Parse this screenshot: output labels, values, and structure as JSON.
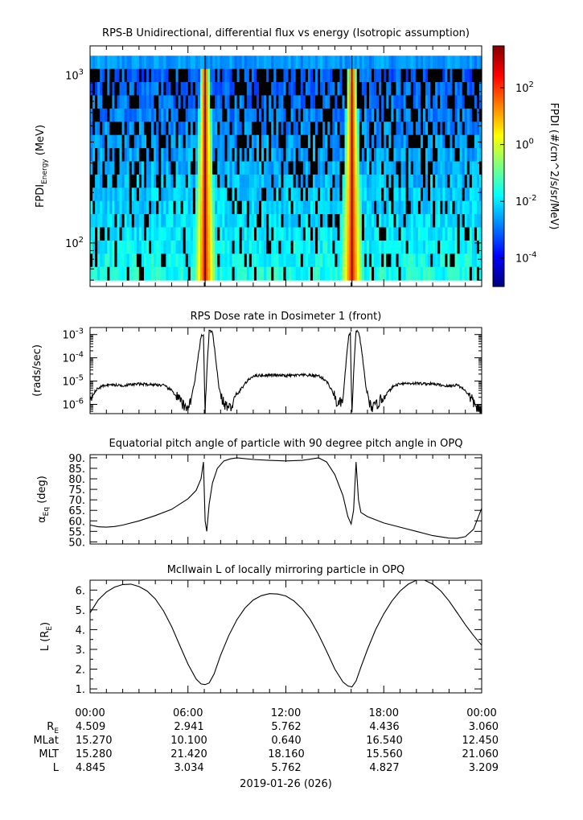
{
  "colors": {
    "colormap": [
      "#00007f",
      "#0000ff",
      "#007fff",
      "#00ffff",
      "#7fff7f",
      "#ffff00",
      "#ff7f00",
      "#ff0000",
      "#7f0000"
    ],
    "no_data": "#000000",
    "line": "#000000"
  },
  "chart_data": [
    {
      "type": "heatmap",
      "title": "RPS-B  Unidirectional, differential flux vs energy (Isotropic assumption)",
      "ylabel_main": "FPDI",
      "ylabel_sub": "Energy",
      "ylabel_unit": "(MeV)",
      "yscale": "log",
      "ylim": [
        55,
        1500
      ],
      "y_ticks": [
        {
          "value": 100,
          "base": "10",
          "exp": "2"
        },
        {
          "value": 1000,
          "base": "10",
          "exp": "3"
        }
      ],
      "x_range_hours": [
        0,
        24
      ],
      "energy_channel_count": 17,
      "colorbar": {
        "label": "FPDI (#/cm^2/s/sr/MeV)",
        "scale": "log",
        "range": [
          1e-05,
          3000
        ],
        "ticks": [
          {
            "value": 100,
            "base": "10",
            "exp": "2"
          },
          {
            "value": 1,
            "base": "10",
            "exp": "0"
          },
          {
            "value": 0.01,
            "base": "10",
            "exp": "-2"
          },
          {
            "value": 0.0001,
            "base": "10",
            "exp": "-4"
          }
        ]
      },
      "belt_crossings_hours": [
        7.05,
        16.05
      ],
      "peak_flux": 200,
      "background_flux": 0.01
    },
    {
      "type": "line",
      "title": "RPS  Dose rate in Dosimeter 1 (front)",
      "ylabel": "(rads/sec)",
      "yscale": "log",
      "ylim": [
        4e-07,
        0.002
      ],
      "y_ticks": [
        {
          "value": 0.001,
          "base": "10",
          "exp": "-3"
        },
        {
          "value": 0.0001,
          "base": "10",
          "exp": "-4"
        },
        {
          "value": 1e-05,
          "base": "10",
          "exp": "-5"
        },
        {
          "value": 1e-06,
          "base": "10",
          "exp": "-6"
        }
      ],
      "x": [
        0,
        0.5,
        1,
        2,
        3,
        4,
        4.5,
        5,
        5.5,
        5.8,
        6.1,
        6.4,
        6.6,
        6.8,
        6.95,
        7.05,
        7.15,
        7.3,
        7.5,
        7.7,
        7.9,
        8.2,
        8.6,
        9.0,
        9.5,
        10,
        11,
        12,
        13,
        14,
        14.5,
        14.9,
        15.2,
        15.5,
        15.7,
        15.85,
        15.95,
        16.05,
        16.15,
        16.3,
        16.5,
        16.7,
        16.9,
        17.1,
        17.4,
        17.8,
        18.2,
        18.6,
        19,
        20,
        21,
        22,
        22.5,
        23,
        23.5,
        24
      ],
      "y": [
        2e-06,
        5e-06,
        7e-06,
        6.5e-06,
        7.5e-06,
        7e-06,
        6.5e-06,
        4e-06,
        1.5e-06,
        7e-07,
        1e-06,
        8e-06,
        8e-05,
        0.0008,
        0.001,
        3e-07,
        2e-05,
        0.0015,
        0.0012,
        0.0001,
        5e-06,
        1e-06,
        7e-07,
        2.5e-06,
        8e-06,
        1.7e-05,
        1.8e-05,
        1.7e-05,
        1.8e-05,
        1.7e-05,
        1e-05,
        3e-06,
        9e-07,
        1.5e-06,
        8e-05,
        0.0008,
        0.0012,
        3e-07,
        2e-05,
        0.0015,
        0.001,
        0.0001,
        6e-06,
        1e-06,
        7e-07,
        1.5e-06,
        3e-06,
        6e-06,
        8e-06,
        8e-06,
        7.5e-06,
        6e-06,
        7e-06,
        4e-06,
        1.2e-06,
        4e-07
      ]
    },
    {
      "type": "line",
      "title": "Equatorial pitch angle of particle with 90 degree pitch angle in OPQ",
      "ylabel_main": "α",
      "ylabel_sub": "Eq",
      "ylabel_unit": " (deg)",
      "ylim": [
        49,
        91.5
      ],
      "y_ticks": [
        50,
        55,
        60,
        65,
        70,
        75,
        80,
        85,
        90
      ],
      "y_tick_labels": [
        "50.",
        "55.",
        "60.",
        "65.",
        "70.",
        "75.",
        "80.",
        "85.",
        "90."
      ],
      "x": [
        0,
        0.5,
        1,
        1.5,
        2,
        3,
        4,
        5,
        6,
        6.5,
        6.8,
        6.95,
        7.05,
        7.15,
        7.3,
        7.5,
        7.8,
        8.2,
        8.6,
        9,
        10,
        11,
        12,
        13,
        14,
        14.5,
        15,
        15.5,
        15.8,
        16.0,
        16.15,
        16.3,
        16.45,
        16.6,
        17,
        18,
        19,
        20,
        21,
        22,
        22.5,
        23,
        23.5,
        24
      ],
      "y": [
        58,
        57.2,
        57,
        57.3,
        58,
        60,
        62.5,
        65.5,
        70.5,
        74.5,
        80,
        88,
        60,
        55,
        68,
        78,
        85,
        88.5,
        89.5,
        90,
        89.2,
        88.8,
        88.5,
        88.8,
        90,
        88,
        82,
        72,
        62,
        58.5,
        65,
        88,
        70,
        64,
        62,
        59,
        57,
        55,
        53,
        51.8,
        51.7,
        52.5,
        56,
        66
      ]
    },
    {
      "type": "line",
      "title": "McIlwain L of locally mirroring particle in OPQ",
      "ylabel_main": "L (R",
      "ylabel_sub": "E",
      "ylabel_unit": ")",
      "ylim": [
        0.8,
        6.5
      ],
      "y_ticks": [
        1,
        2,
        3,
        4,
        5,
        6
      ],
      "y_tick_labels": [
        "1.",
        "2.",
        "3.",
        "4.",
        "5.",
        "6."
      ],
      "x": [
        0,
        0.5,
        1,
        1.5,
        2,
        2.5,
        3,
        3.5,
        4,
        4.5,
        5,
        5.5,
        6,
        6.5,
        6.8,
        7.05,
        7.3,
        7.6,
        8,
        8.5,
        9,
        9.5,
        10,
        10.5,
        11,
        11.5,
        12,
        12.5,
        13,
        13.5,
        14,
        14.5,
        15,
        15.5,
        15.8,
        16.05,
        16.3,
        16.6,
        17,
        17.5,
        18,
        18.5,
        19,
        19.5,
        20,
        20.5,
        21,
        21.5,
        22,
        22.5,
        23,
        23.5,
        24
      ],
      "y": [
        4.845,
        5.5,
        5.9,
        6.15,
        6.28,
        6.3,
        6.18,
        5.95,
        5.55,
        4.95,
        4.15,
        3.2,
        2.25,
        1.5,
        1.25,
        1.22,
        1.3,
        1.75,
        2.7,
        3.7,
        4.5,
        5.1,
        5.5,
        5.72,
        5.82,
        5.8,
        5.7,
        5.45,
        5.05,
        4.5,
        3.75,
        2.9,
        2.0,
        1.35,
        1.15,
        1.1,
        1.4,
        2.1,
        3.0,
        4.0,
        4.8,
        5.45,
        5.95,
        6.3,
        6.5,
        6.5,
        6.3,
        5.95,
        5.45,
        4.85,
        4.25,
        3.7,
        3.209
      ]
    }
  ],
  "time_axis": {
    "range_hours": [
      0,
      24
    ],
    "tick_labels": [
      "00:00",
      "06:00",
      "12:00",
      "18:00",
      "00:00"
    ],
    "date_label": "2019-01-26 (026)"
  },
  "ephemeris": {
    "rows": [
      {
        "name": "R",
        "sub": "E",
        "values": [
          "4.509",
          "2.941",
          "5.762",
          "4.436",
          "3.060"
        ]
      },
      {
        "name": "MLat",
        "sub": "",
        "values": [
          "15.270",
          "10.100",
          "0.640",
          "16.540",
          "12.450"
        ]
      },
      {
        "name": "MLT",
        "sub": "",
        "values": [
          "15.280",
          "21.420",
          "18.160",
          "15.560",
          "21.060"
        ]
      },
      {
        "name": "L",
        "sub": "",
        "values": [
          "4.845",
          "3.034",
          "5.762",
          "4.827",
          "3.209"
        ]
      }
    ]
  }
}
